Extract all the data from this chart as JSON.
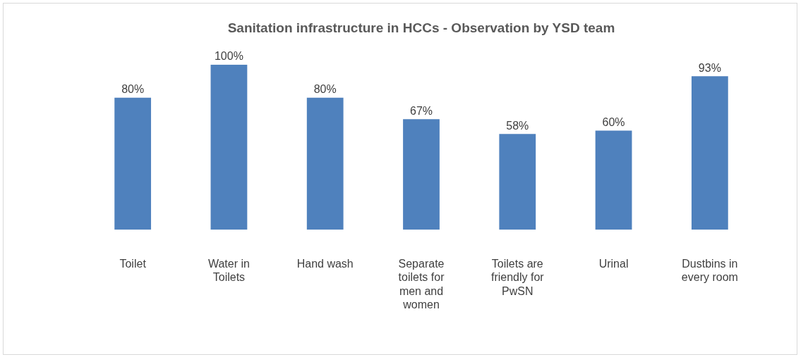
{
  "chart_data": {
    "type": "bar",
    "title": "Sanitation infrastructure in HCCs - Observation by YSD team",
    "categories": [
      "Toilet",
      "Water in Toilets",
      "Hand wash",
      "Separate toilets for men and women",
      "Toilets are friendly for PwSN",
      "Urinal",
      "Dustbins in every room"
    ],
    "values": [
      80,
      100,
      80,
      67,
      58,
      60,
      93
    ],
    "value_labels": [
      "80%",
      "100%",
      "80%",
      "67%",
      "58%",
      "60%",
      "93%"
    ],
    "color": "#4f81bd",
    "tick_labels": "x",
    "grid": false
  }
}
